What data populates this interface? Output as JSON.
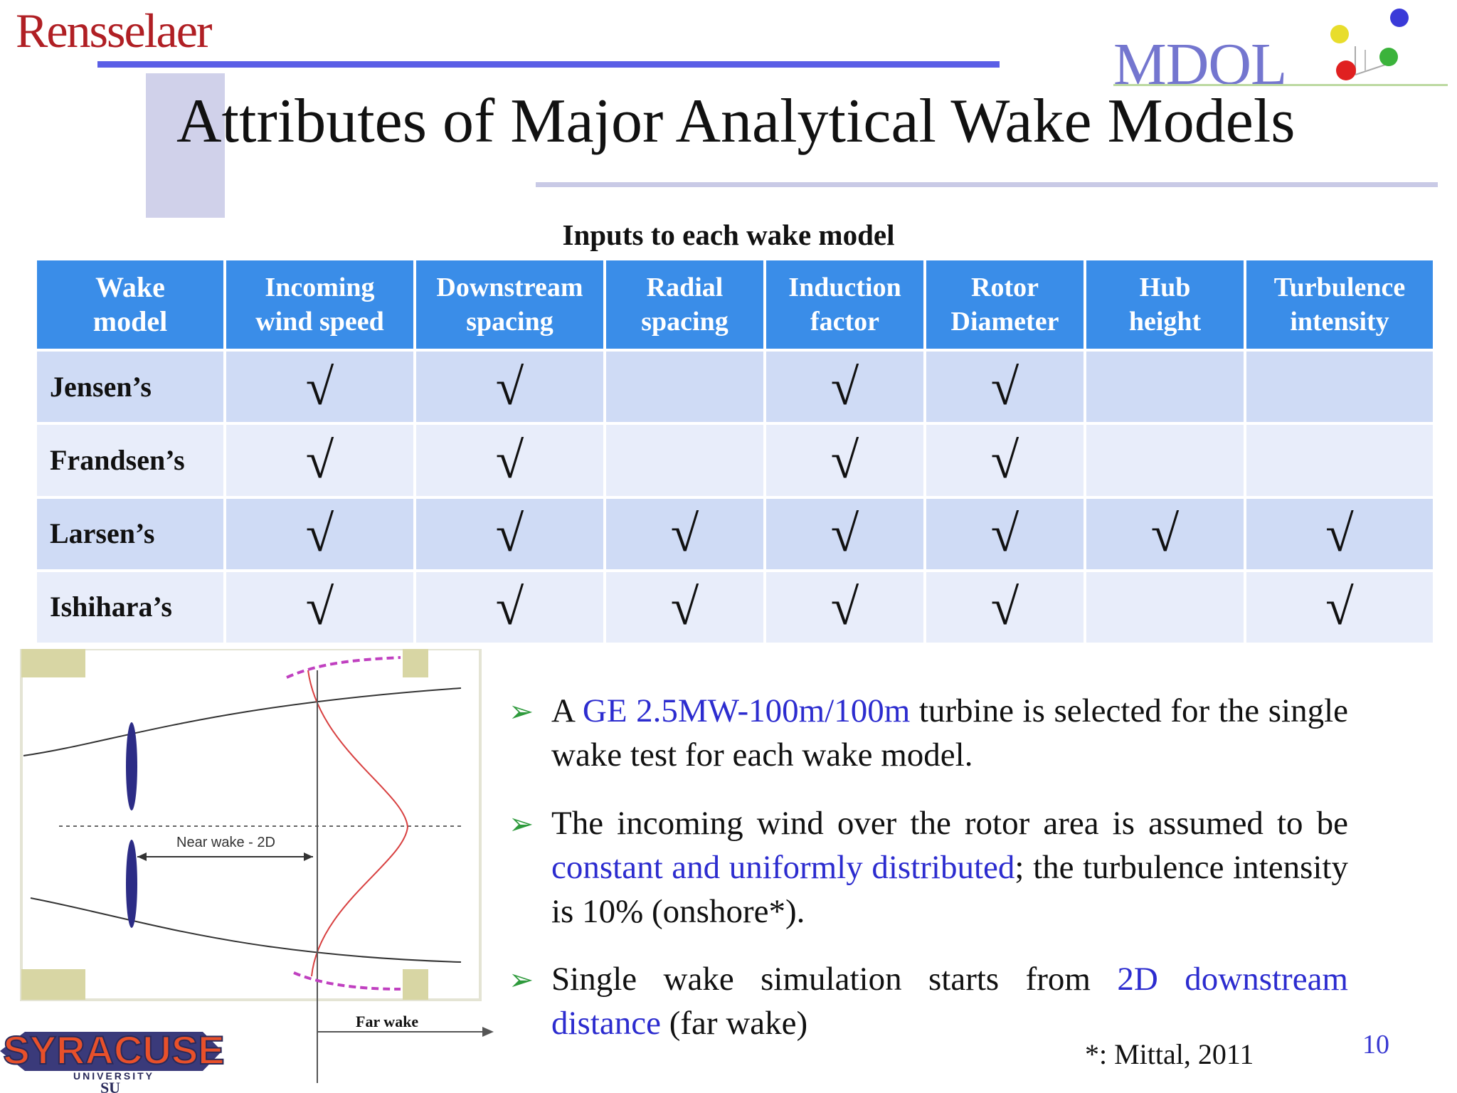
{
  "header": {
    "university_logo_text": "Rensselaer",
    "lab_logo_text": "MDOL",
    "title": "Attributes of Major Analytical Wake Models"
  },
  "table": {
    "caption": "Inputs to each wake model",
    "headers": [
      [
        "Wake",
        "model"
      ],
      [
        "Incoming",
        "wind speed"
      ],
      [
        "Downstream",
        "spacing"
      ],
      [
        "Radial",
        "spacing"
      ],
      [
        "Induction",
        "factor"
      ],
      [
        "Rotor",
        "Diameter"
      ],
      [
        "Hub",
        "height"
      ],
      [
        "Turbulence",
        "intensity"
      ]
    ],
    "check_symbol": "√",
    "rows": [
      {
        "name": "Jensen’s",
        "cells": [
          "√",
          "√",
          "",
          "√",
          "√",
          "",
          ""
        ]
      },
      {
        "name": "Frandsen’s",
        "cells": [
          "√",
          "√",
          "",
          "√",
          "√",
          "",
          ""
        ]
      },
      {
        "name": "Larsen’s",
        "cells": [
          "√",
          "√",
          "√",
          "√",
          "√",
          "√",
          "√"
        ]
      },
      {
        "name": "Ishihara’s",
        "cells": [
          "√",
          "√",
          "√",
          "√",
          "√",
          "",
          "√"
        ]
      }
    ]
  },
  "diagram": {
    "near_wake_label": "Near wake - 2D",
    "far_wake_label": "Far wake"
  },
  "bullets": {
    "b1": {
      "pre": "A ",
      "hl": "GE 2.5MW-100m/100m",
      "post": " turbine is selected for the single wake test for each wake model."
    },
    "b2": {
      "pre": "The incoming wind over the rotor area is assumed to be ",
      "hl": "constant and  uniformly distributed",
      "post": "; the turbulence intensity is 10% (onshore*)."
    },
    "b3": {
      "pre": "Single wake simulation starts from ",
      "hl": "2D downstream distance",
      "post": " (far wake)"
    }
  },
  "footnote": "*: Mittal, 2011",
  "page_number": "10",
  "footer_logo": {
    "name": "SYRACUSE",
    "sub": "UNIVERSITY",
    "mark": "SU"
  },
  "colors": {
    "accent": "#5a5ee6",
    "table_header": "#3a8de8",
    "highlight": "#2c2ccf",
    "bullet_arrow": "#2e9a3c"
  }
}
